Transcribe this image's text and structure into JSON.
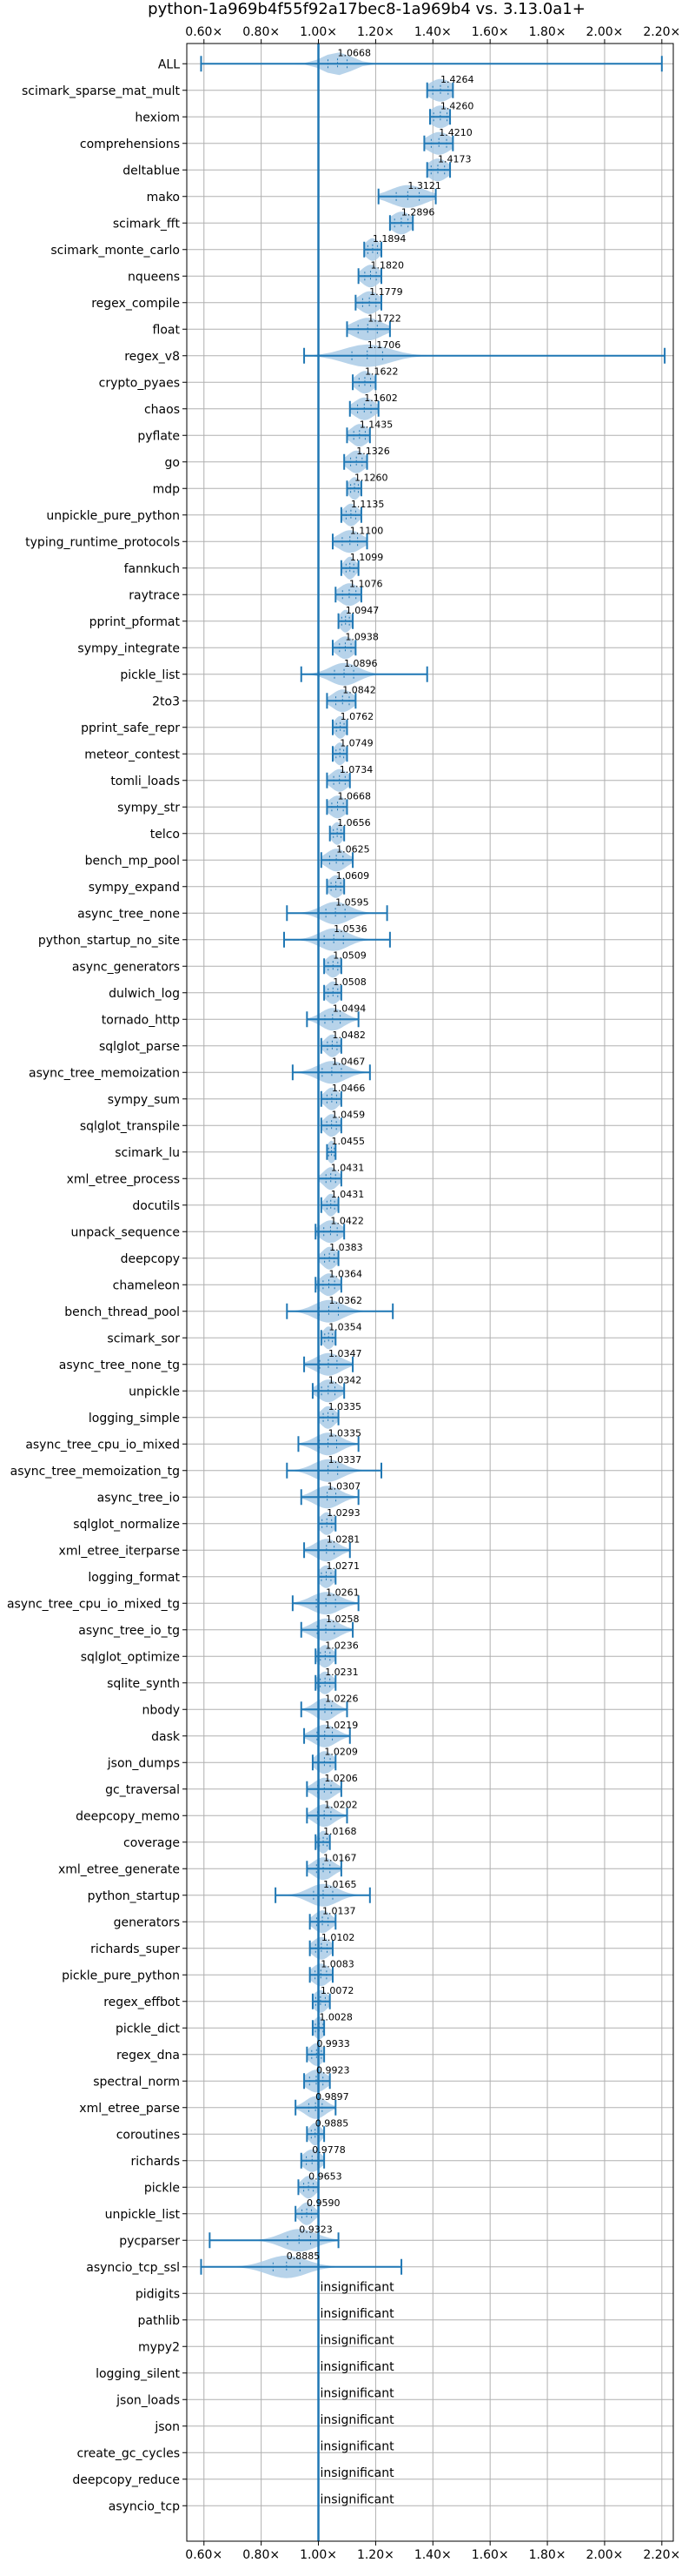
{
  "chart_data": {
    "type": "violin",
    "title": "python-1a969b4f55f92a17bec8-1a969b4 vs. 3.13.0a1+",
    "xlim": [
      0.54,
      2.24
    ],
    "reference_line": 1.0,
    "x_ticks": [
      0.6,
      0.8,
      1.0,
      1.2,
      1.4,
      1.6,
      1.8,
      2.0,
      2.2
    ],
    "x_tick_labels": [
      "0.60×",
      "0.80×",
      "1.00×",
      "1.20×",
      "1.40×",
      "1.60×",
      "1.80×",
      "2.00×",
      "2.20×"
    ],
    "grid": true,
    "colors": {
      "violin": "#aacbe6",
      "line": "#1f77b4",
      "grid": "#b0b0b0"
    },
    "insignificant_label": "insignificant",
    "benchmarks": [
      {
        "name": "ALL",
        "value": 1.0668,
        "label": "1.0668",
        "min": 0.59,
        "max": 2.2,
        "spread": 0.05
      },
      {
        "name": "scimark_sparse_mat_mult",
        "value": 1.4264,
        "label": "1.4264",
        "min": 1.38,
        "max": 1.47,
        "spread": 0.04
      },
      {
        "name": "hexiom",
        "value": 1.426,
        "label": "1.4260",
        "min": 1.39,
        "max": 1.46,
        "spread": 0.035
      },
      {
        "name": "comprehensions",
        "value": 1.421,
        "label": "1.4210",
        "min": 1.37,
        "max": 1.47,
        "spread": 0.04
      },
      {
        "name": "deltablue",
        "value": 1.4173,
        "label": "1.4173",
        "min": 1.38,
        "max": 1.46,
        "spread": 0.035
      },
      {
        "name": "mako",
        "value": 1.3121,
        "label": "1.3121",
        "min": 1.21,
        "max": 1.41,
        "spread": 0.06
      },
      {
        "name": "scimark_fft",
        "value": 1.2896,
        "label": "1.2896",
        "min": 1.25,
        "max": 1.33,
        "spread": 0.035
      },
      {
        "name": "scimark_monte_carlo",
        "value": 1.1894,
        "label": "1.1894",
        "min": 1.16,
        "max": 1.22,
        "spread": 0.025
      },
      {
        "name": "nqueens",
        "value": 1.182,
        "label": "1.1820",
        "min": 1.14,
        "max": 1.22,
        "spread": 0.03
      },
      {
        "name": "regex_compile",
        "value": 1.1779,
        "label": "1.1779",
        "min": 1.13,
        "max": 1.22,
        "spread": 0.035
      },
      {
        "name": "float",
        "value": 1.1722,
        "label": "1.1722",
        "min": 1.1,
        "max": 1.25,
        "spread": 0.05
      },
      {
        "name": "regex_v8",
        "value": 1.1706,
        "label": "1.1706",
        "min": 0.95,
        "max": 2.21,
        "spread": 0.08
      },
      {
        "name": "crypto_pyaes",
        "value": 1.1622,
        "label": "1.1622",
        "min": 1.12,
        "max": 1.2,
        "spread": 0.03
      },
      {
        "name": "chaos",
        "value": 1.1602,
        "label": "1.1602",
        "min": 1.11,
        "max": 1.21,
        "spread": 0.035
      },
      {
        "name": "pyflate",
        "value": 1.1435,
        "label": "1.1435",
        "min": 1.1,
        "max": 1.18,
        "spread": 0.03
      },
      {
        "name": "go",
        "value": 1.1326,
        "label": "1.1326",
        "min": 1.09,
        "max": 1.17,
        "spread": 0.03
      },
      {
        "name": "mdp",
        "value": 1.126,
        "label": "1.1260",
        "min": 1.1,
        "max": 1.15,
        "spread": 0.02
      },
      {
        "name": "unpickle_pure_python",
        "value": 1.1135,
        "label": "1.1135",
        "min": 1.08,
        "max": 1.15,
        "spread": 0.025
      },
      {
        "name": "typing_runtime_protocols",
        "value": 1.11,
        "label": "1.1100",
        "min": 1.05,
        "max": 1.17,
        "spread": 0.04
      },
      {
        "name": "fannkuch",
        "value": 1.1099,
        "label": "1.1099",
        "min": 1.08,
        "max": 1.14,
        "spread": 0.02
      },
      {
        "name": "raytrace",
        "value": 1.1076,
        "label": "1.1076",
        "min": 1.06,
        "max": 1.15,
        "spread": 0.035
      },
      {
        "name": "pprint_pformat",
        "value": 1.0947,
        "label": "1.0947",
        "min": 1.07,
        "max": 1.12,
        "spread": 0.02
      },
      {
        "name": "sympy_integrate",
        "value": 1.0938,
        "label": "1.0938",
        "min": 1.05,
        "max": 1.13,
        "spread": 0.03
      },
      {
        "name": "pickle_list",
        "value": 1.0896,
        "label": "1.0896",
        "min": 0.94,
        "max": 1.38,
        "spread": 0.05
      },
      {
        "name": "2to3",
        "value": 1.0842,
        "label": "1.0842",
        "min": 1.03,
        "max": 1.13,
        "spread": 0.035
      },
      {
        "name": "pprint_safe_repr",
        "value": 1.0762,
        "label": "1.0762",
        "min": 1.05,
        "max": 1.1,
        "spread": 0.02
      },
      {
        "name": "meteor_contest",
        "value": 1.0749,
        "label": "1.0749",
        "min": 1.05,
        "max": 1.1,
        "spread": 0.02
      },
      {
        "name": "tomli_loads",
        "value": 1.0734,
        "label": "1.0734",
        "min": 1.03,
        "max": 1.11,
        "spread": 0.03
      },
      {
        "name": "sympy_str",
        "value": 1.0668,
        "label": "1.0668",
        "min": 1.03,
        "max": 1.1,
        "spread": 0.03
      },
      {
        "name": "telco",
        "value": 1.0656,
        "label": "1.0656",
        "min": 1.04,
        "max": 1.09,
        "spread": 0.02
      },
      {
        "name": "bench_mp_pool",
        "value": 1.0625,
        "label": "1.0625",
        "min": 1.01,
        "max": 1.12,
        "spread": 0.035
      },
      {
        "name": "sympy_expand",
        "value": 1.0609,
        "label": "1.0609",
        "min": 1.03,
        "max": 1.09,
        "spread": 0.025
      },
      {
        "name": "async_tree_none",
        "value": 1.0595,
        "label": "1.0595",
        "min": 0.89,
        "max": 1.24,
        "spread": 0.05
      },
      {
        "name": "python_startup_no_site",
        "value": 1.0536,
        "label": "1.0536",
        "min": 0.88,
        "max": 1.25,
        "spread": 0.05
      },
      {
        "name": "async_generators",
        "value": 1.0509,
        "label": "1.0509",
        "min": 1.02,
        "max": 1.08,
        "spread": 0.025
      },
      {
        "name": "dulwich_log",
        "value": 1.0508,
        "label": "1.0508",
        "min": 1.02,
        "max": 1.08,
        "spread": 0.025
      },
      {
        "name": "tornado_http",
        "value": 1.0494,
        "label": "1.0494",
        "min": 0.96,
        "max": 1.14,
        "spread": 0.04
      },
      {
        "name": "sqlglot_parse",
        "value": 1.0482,
        "label": "1.0482",
        "min": 1.01,
        "max": 1.08,
        "spread": 0.025
      },
      {
        "name": "async_tree_memoization",
        "value": 1.0467,
        "label": "1.0467",
        "min": 0.91,
        "max": 1.18,
        "spread": 0.05
      },
      {
        "name": "sympy_sum",
        "value": 1.0466,
        "label": "1.0466",
        "min": 1.01,
        "max": 1.08,
        "spread": 0.025
      },
      {
        "name": "sqlglot_transpile",
        "value": 1.0459,
        "label": "1.0459",
        "min": 1.01,
        "max": 1.08,
        "spread": 0.025
      },
      {
        "name": "scimark_lu",
        "value": 1.0455,
        "label": "1.0455",
        "min": 1.03,
        "max": 1.06,
        "spread": 0.015
      },
      {
        "name": "xml_etree_process",
        "value": 1.0431,
        "label": "1.0431",
        "min": 1.0,
        "max": 1.08,
        "spread": 0.025
      },
      {
        "name": "docutils",
        "value": 1.0431,
        "label": "1.0431",
        "min": 1.01,
        "max": 1.07,
        "spread": 0.02
      },
      {
        "name": "unpack_sequence",
        "value": 1.0422,
        "label": "1.0422",
        "min": 0.99,
        "max": 1.09,
        "spread": 0.035
      },
      {
        "name": "deepcopy",
        "value": 1.0383,
        "label": "1.0383",
        "min": 1.0,
        "max": 1.07,
        "spread": 0.025
      },
      {
        "name": "chameleon",
        "value": 1.0364,
        "label": "1.0364",
        "min": 0.99,
        "max": 1.08,
        "spread": 0.03
      },
      {
        "name": "bench_thread_pool",
        "value": 1.0362,
        "label": "1.0362",
        "min": 0.89,
        "max": 1.26,
        "spread": 0.05
      },
      {
        "name": "scimark_sor",
        "value": 1.0354,
        "label": "1.0354",
        "min": 1.01,
        "max": 1.06,
        "spread": 0.02
      },
      {
        "name": "async_tree_none_tg",
        "value": 1.0347,
        "label": "1.0347",
        "min": 0.95,
        "max": 1.12,
        "spread": 0.045
      },
      {
        "name": "unpickle",
        "value": 1.0342,
        "label": "1.0342",
        "min": 0.98,
        "max": 1.09,
        "spread": 0.035
      },
      {
        "name": "logging_simple",
        "value": 1.0335,
        "label": "1.0335",
        "min": 1.0,
        "max": 1.07,
        "spread": 0.025
      },
      {
        "name": "async_tree_cpu_io_mixed",
        "value": 1.0335,
        "label": "1.0335",
        "min": 0.93,
        "max": 1.14,
        "spread": 0.045
      },
      {
        "name": "async_tree_memoization_tg",
        "value": 1.0337,
        "label": "1.0337",
        "min": 0.89,
        "max": 1.22,
        "spread": 0.05
      },
      {
        "name": "async_tree_io",
        "value": 1.0307,
        "label": "1.0307",
        "min": 0.94,
        "max": 1.14,
        "spread": 0.045
      },
      {
        "name": "sqlglot_normalize",
        "value": 1.0293,
        "label": "1.0293",
        "min": 1.0,
        "max": 1.06,
        "spread": 0.025
      },
      {
        "name": "xml_etree_iterparse",
        "value": 1.0281,
        "label": "1.0281",
        "min": 0.95,
        "max": 1.11,
        "spread": 0.04
      },
      {
        "name": "logging_format",
        "value": 1.0271,
        "label": "1.0271",
        "min": 1.0,
        "max": 1.06,
        "spread": 0.025
      },
      {
        "name": "async_tree_cpu_io_mixed_tg",
        "value": 1.0261,
        "label": "1.0261",
        "min": 0.91,
        "max": 1.14,
        "spread": 0.05
      },
      {
        "name": "async_tree_io_tg",
        "value": 1.0258,
        "label": "1.0258",
        "min": 0.94,
        "max": 1.12,
        "spread": 0.045
      },
      {
        "name": "sqlglot_optimize",
        "value": 1.0236,
        "label": "1.0236",
        "min": 0.99,
        "max": 1.06,
        "spread": 0.025
      },
      {
        "name": "sqlite_synth",
        "value": 1.0231,
        "label": "1.0231",
        "min": 0.99,
        "max": 1.06,
        "spread": 0.025
      },
      {
        "name": "nbody",
        "value": 1.0226,
        "label": "1.0226",
        "min": 0.94,
        "max": 1.1,
        "spread": 0.035
      },
      {
        "name": "dask",
        "value": 1.0219,
        "label": "1.0219",
        "min": 0.95,
        "max": 1.11,
        "spread": 0.04
      },
      {
        "name": "json_dumps",
        "value": 1.0209,
        "label": "1.0209",
        "min": 0.98,
        "max": 1.06,
        "spread": 0.03
      },
      {
        "name": "gc_traversal",
        "value": 1.0206,
        "label": "1.0206",
        "min": 0.96,
        "max": 1.08,
        "spread": 0.035
      },
      {
        "name": "deepcopy_memo",
        "value": 1.0202,
        "label": "1.0202",
        "min": 0.96,
        "max": 1.1,
        "spread": 0.035
      },
      {
        "name": "coverage",
        "value": 1.0168,
        "label": "1.0168",
        "min": 0.99,
        "max": 1.04,
        "spread": 0.02
      },
      {
        "name": "xml_etree_generate",
        "value": 1.0167,
        "label": "1.0167",
        "min": 0.96,
        "max": 1.08,
        "spread": 0.035
      },
      {
        "name": "python_startup",
        "value": 1.0165,
        "label": "1.0165",
        "min": 0.85,
        "max": 1.18,
        "spread": 0.05
      },
      {
        "name": "generators",
        "value": 1.0137,
        "label": "1.0137",
        "min": 0.97,
        "max": 1.06,
        "spread": 0.03
      },
      {
        "name": "richards_super",
        "value": 1.0102,
        "label": "1.0102",
        "min": 0.97,
        "max": 1.05,
        "spread": 0.03
      },
      {
        "name": "pickle_pure_python",
        "value": 1.0083,
        "label": "1.0083",
        "min": 0.97,
        "max": 1.05,
        "spread": 0.03
      },
      {
        "name": "regex_effbot",
        "value": 1.0072,
        "label": "1.0072",
        "min": 0.98,
        "max": 1.04,
        "spread": 0.025
      },
      {
        "name": "pickle_dict",
        "value": 1.0028,
        "label": "1.0028",
        "min": 0.98,
        "max": 1.02,
        "spread": 0.02
      },
      {
        "name": "regex_dna",
        "value": 0.9933,
        "label": "0.9933",
        "min": 0.96,
        "max": 1.02,
        "spread": 0.025
      },
      {
        "name": "spectral_norm",
        "value": 0.9923,
        "label": "0.9923",
        "min": 0.95,
        "max": 1.04,
        "spread": 0.035
      },
      {
        "name": "xml_etree_parse",
        "value": 0.9897,
        "label": "0.9897",
        "min": 0.92,
        "max": 1.06,
        "spread": 0.035
      },
      {
        "name": "coroutines",
        "value": 0.9885,
        "label": "0.9885",
        "min": 0.96,
        "max": 1.02,
        "spread": 0.02
      },
      {
        "name": "richards",
        "value": 0.9778,
        "label": "0.9778",
        "min": 0.94,
        "max": 1.02,
        "spread": 0.03
      },
      {
        "name": "pickle",
        "value": 0.9653,
        "label": "0.9653",
        "min": 0.93,
        "max": 1.0,
        "spread": 0.025
      },
      {
        "name": "unpickle_list",
        "value": 0.959,
        "label": "0.9590",
        "min": 0.92,
        "max": 1.0,
        "spread": 0.025
      },
      {
        "name": "pycparser",
        "value": 0.9323,
        "label": "0.9323",
        "min": 0.62,
        "max": 1.07,
        "spread": 0.06
      },
      {
        "name": "asyncio_tcp_ssl",
        "value": 0.8885,
        "label": "0.8885",
        "min": 0.59,
        "max": 1.29,
        "spread": 0.07
      },
      {
        "name": "pidigits",
        "insignificant": true
      },
      {
        "name": "pathlib",
        "insignificant": true
      },
      {
        "name": "mypy2",
        "insignificant": true
      },
      {
        "name": "logging_silent",
        "insignificant": true
      },
      {
        "name": "json_loads",
        "insignificant": true
      },
      {
        "name": "json",
        "insignificant": true
      },
      {
        "name": "create_gc_cycles",
        "insignificant": true
      },
      {
        "name": "deepcopy_reduce",
        "insignificant": true
      },
      {
        "name": "asyncio_tcp",
        "insignificant": true
      }
    ]
  }
}
